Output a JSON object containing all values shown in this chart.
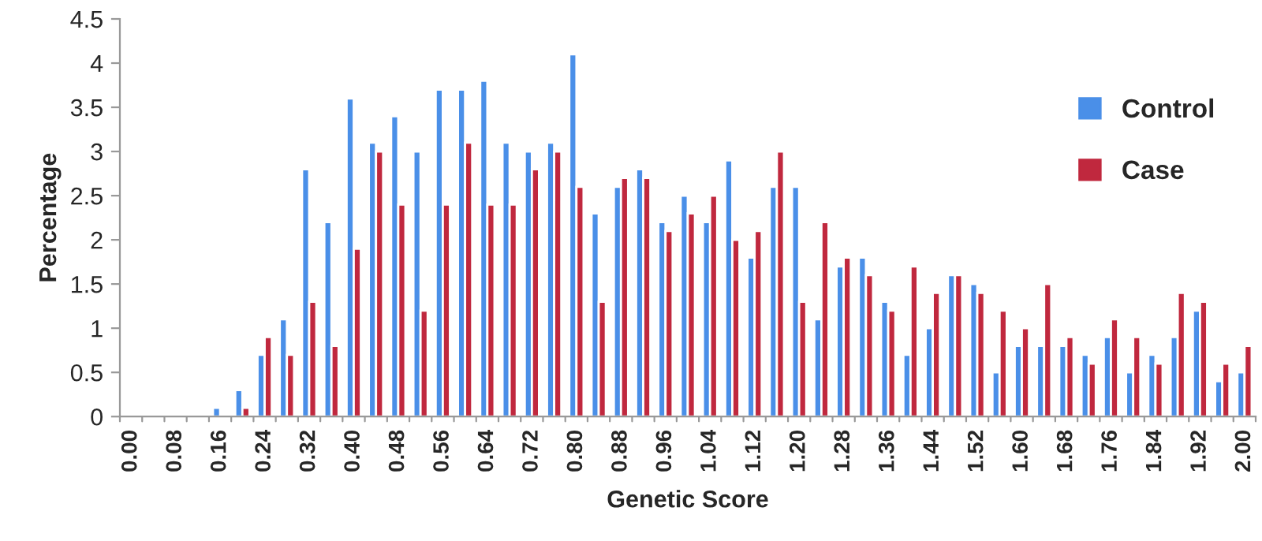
{
  "chart_data": {
    "type": "bar",
    "xlabel": "Genetic Score",
    "ylabel": "Percentage",
    "categories": [
      "0.00",
      null,
      "0.08",
      null,
      "0.16",
      null,
      "0.24",
      null,
      "0.32",
      null,
      "0.40",
      null,
      "0.48",
      null,
      "0.56",
      null,
      "0.64",
      null,
      "0.72",
      null,
      "0.80",
      null,
      "0.88",
      null,
      "0.96",
      null,
      "1.04",
      null,
      "1.12",
      null,
      "1.20",
      null,
      "1.28",
      null,
      "1.36",
      null,
      "1.44",
      null,
      "1.52",
      null,
      "1.60",
      null,
      "1.68",
      null,
      "1.76",
      null,
      "1.84",
      null,
      "1.92",
      null,
      "2.00"
    ],
    "series": [
      {
        "name": "Control",
        "color": "#4a8fe8",
        "values": [
          null,
          null,
          null,
          null,
          0.1,
          0.3,
          0.7,
          1.1,
          2.8,
          2.2,
          3.6,
          3.1,
          3.4,
          3.0,
          3.7,
          3.7,
          3.8,
          3.1,
          3.0,
          3.1,
          4.1,
          2.3,
          2.6,
          2.8,
          2.2,
          2.5,
          2.2,
          2.9,
          1.8,
          2.6,
          2.6,
          1.1,
          1.7,
          1.8,
          1.3,
          0.7,
          1.0,
          1.6,
          1.5,
          0.5,
          0.8,
          0.8,
          0.8,
          0.7,
          0.9,
          0.5,
          0.7,
          0.9,
          1.2,
          0.4,
          0.5
        ]
      },
      {
        "name": "Case",
        "color": "#c0283e",
        "values": [
          null,
          null,
          null,
          null,
          null,
          0.1,
          0.9,
          0.7,
          1.3,
          0.8,
          1.9,
          3.0,
          2.4,
          1.2,
          2.4,
          3.1,
          2.4,
          2.4,
          2.8,
          3.0,
          2.6,
          1.3,
          2.7,
          2.7,
          2.1,
          2.3,
          2.5,
          2.0,
          2.1,
          3.0,
          1.3,
          2.2,
          1.8,
          1.6,
          1.2,
          1.7,
          1.4,
          1.6,
          1.4,
          1.2,
          1.0,
          1.5,
          0.9,
          0.6,
          1.1,
          0.9,
          0.6,
          1.4,
          1.3,
          0.6,
          0.8
        ]
      }
    ],
    "ylim": [
      0,
      4.5
    ],
    "yticks": [
      0,
      0.5,
      1,
      1.5,
      2,
      2.5,
      3,
      3.5,
      4,
      4.5
    ],
    "grid": false,
    "legend": "top right"
  }
}
